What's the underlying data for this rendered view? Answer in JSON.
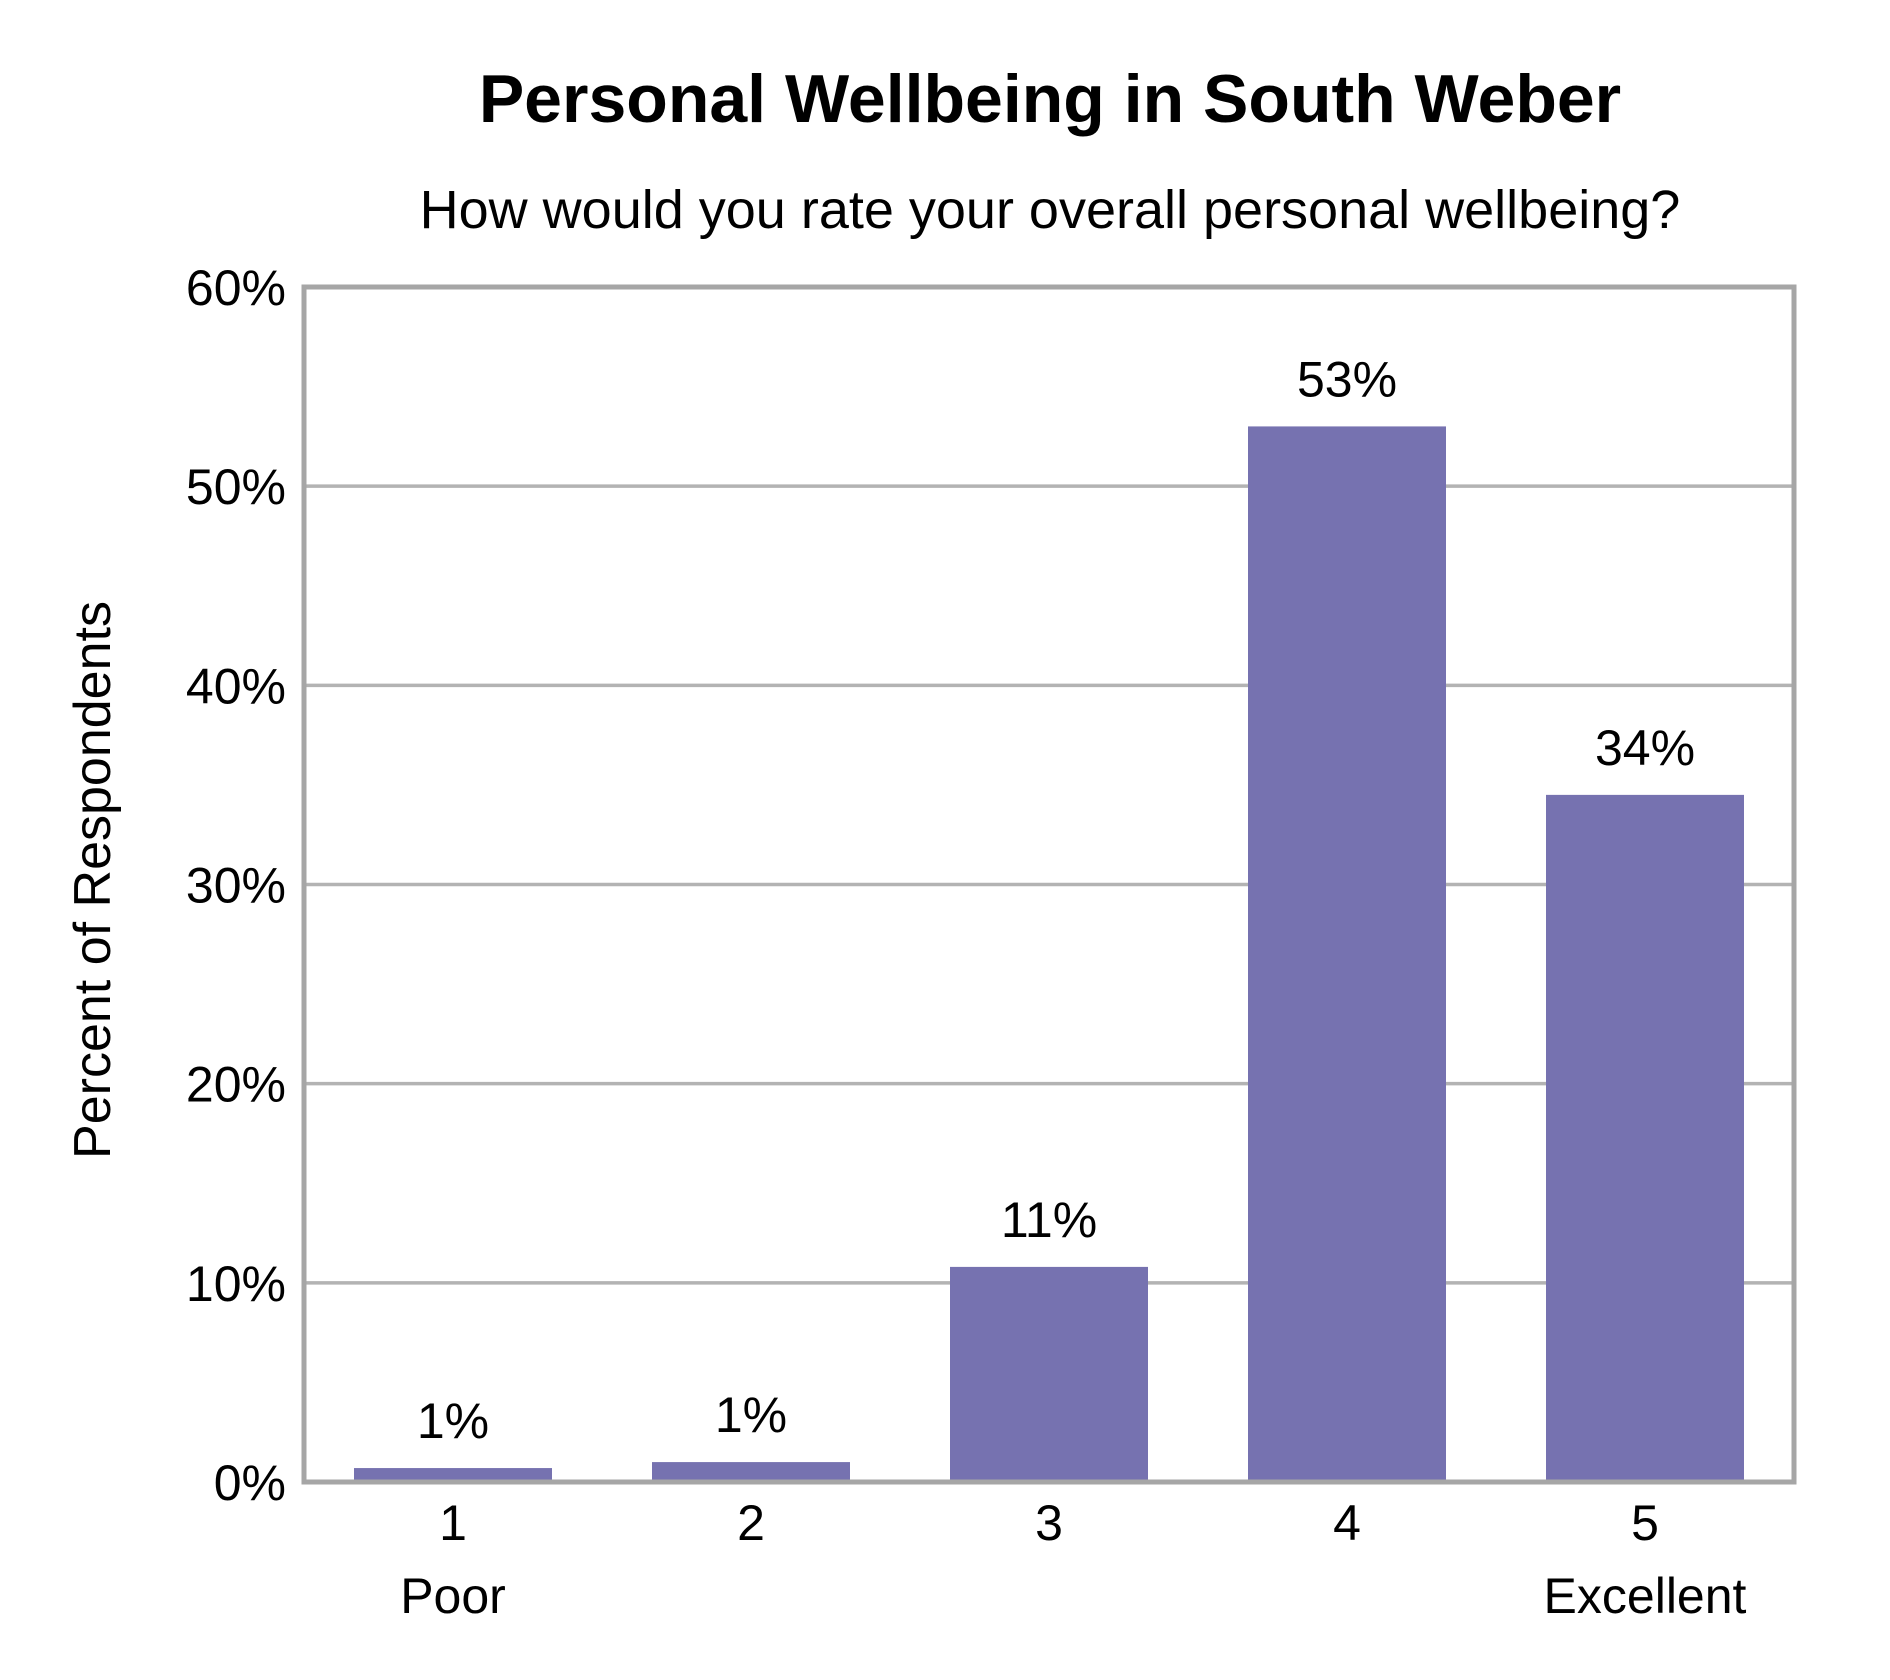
{
  "colors": {
    "bar": "#7672B0",
    "grid": "#B3B3B3",
    "frame": "#A6A6A6",
    "text": "#000000",
    "background": "#FFFFFF"
  },
  "chart_data": {
    "type": "bar",
    "title": "Personal Wellbeing in South Weber",
    "subtitle": "How would you rate your overall personal wellbeing?",
    "xlabel": "",
    "ylabel": "Percent of Respondents",
    "categories": [
      "1",
      "2",
      "3",
      "4",
      "5"
    ],
    "category_sublabels": [
      "Poor",
      "",
      "",
      "",
      "Excellent"
    ],
    "values": [
      0.7,
      1.0,
      10.8,
      53.0,
      34.5
    ],
    "data_labels": [
      "1%",
      "1%",
      "11%",
      "53%",
      "34%"
    ],
    "ylim": [
      0,
      60
    ],
    "yticks": [
      0,
      10,
      20,
      30,
      40,
      50,
      60
    ],
    "ytick_labels": [
      "0%",
      "10%",
      "20%",
      "30%",
      "40%",
      "50%",
      "60%"
    ],
    "grid": true,
    "legend": "none"
  }
}
